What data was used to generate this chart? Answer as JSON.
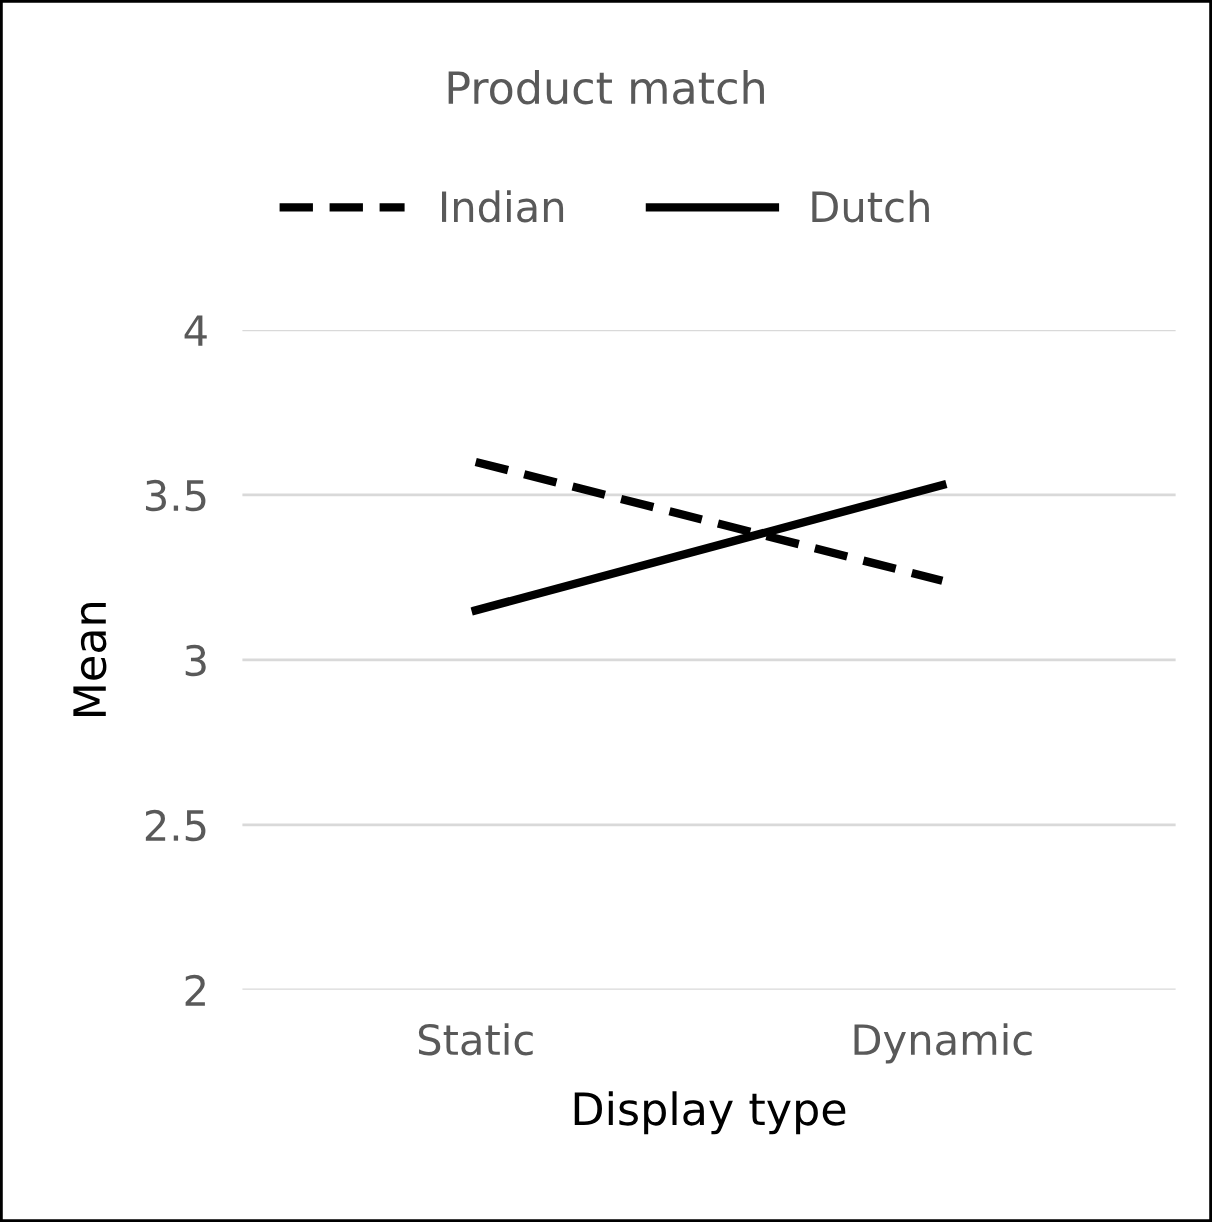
{
  "chart_data": {
    "type": "line",
    "title": "Product match",
    "xlabel": "Display type",
    "ylabel": "Mean",
    "categories": [
      "Static",
      "Dynamic"
    ],
    "series": [
      {
        "name": "Indian",
        "color": "#000000",
        "values": [
          3.6,
          3.24
        ],
        "line_style": "dashed"
      },
      {
        "name": "Dutch",
        "color": "#000000",
        "values": [
          3.15,
          3.53
        ],
        "line_style": "solid"
      }
    ],
    "ylim": [
      2,
      4
    ],
    "yticks": [
      2,
      2.5,
      3,
      3.5,
      4
    ],
    "grid": "y",
    "legend": "top",
    "marker": "none"
  }
}
